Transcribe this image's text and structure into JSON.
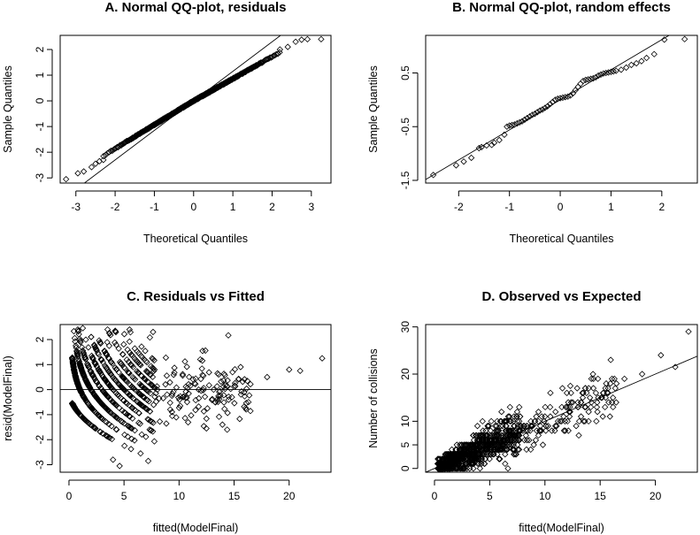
{
  "chart_data": [
    {
      "id": "A",
      "type": "scatter",
      "title": "A. Normal QQ-plot, residuals",
      "xlabel": "Theoretical Quantiles",
      "ylabel": "Sample Quantiles",
      "xlim": [
        -3.4,
        3.5
      ],
      "ylim": [
        -3.2,
        2.55
      ],
      "xticks": [
        -3,
        -2,
        -1,
        0,
        1,
        2,
        3
      ],
      "yticks": [
        -3,
        -2,
        -1,
        0,
        1,
        2
      ],
      "reference_line": {
        "intercept": 0.0,
        "slope": 1.15
      },
      "annotation_points": [
        [
          -3.25,
          -3.05
        ],
        [
          -2.95,
          -2.82
        ],
        [
          -2.8,
          -2.75
        ],
        [
          -2.6,
          -2.58
        ],
        [
          -2.5,
          -2.45
        ],
        [
          -2.4,
          -2.35
        ],
        [
          -2.3,
          -2.3
        ],
        [
          2.2,
          2.0
        ],
        [
          2.4,
          2.1
        ],
        [
          2.6,
          2.3
        ],
        [
          2.75,
          2.38
        ],
        [
          2.9,
          2.4
        ],
        [
          3.25,
          2.4
        ]
      ]
    },
    {
      "id": "B",
      "type": "scatter",
      "title": "B. Normal QQ-plot, random effects",
      "xlabel": "Theoretical Quantiles",
      "ylabel": "Sample Quantiles",
      "xlim": [
        -2.65,
        2.7
      ],
      "ylim": [
        -1.55,
        1.2
      ],
      "xticks": [
        -2,
        -1,
        0,
        1,
        2
      ],
      "yticks": [
        -1.5,
        -0.5,
        0.5
      ],
      "reference_line": {
        "intercept": 0.0,
        "slope": 0.56
      },
      "points": [
        [
          -2.5,
          -1.4
        ],
        [
          -2.05,
          -1.22
        ],
        [
          -1.9,
          -1.15
        ],
        [
          -1.75,
          -1.08
        ],
        [
          -1.6,
          -0.9
        ],
        [
          -1.55,
          -0.88
        ],
        [
          -1.45,
          -0.85
        ],
        [
          -1.35,
          -0.84
        ],
        [
          -1.3,
          -0.8
        ],
        [
          -1.2,
          -0.75
        ],
        [
          -1.1,
          -0.65
        ],
        [
          -1.05,
          -0.5
        ],
        [
          -1.0,
          -0.48
        ],
        [
          -0.95,
          -0.47
        ],
        [
          -0.9,
          -0.46
        ],
        [
          -0.85,
          -0.44
        ],
        [
          -0.8,
          -0.42
        ],
        [
          -0.75,
          -0.4
        ],
        [
          -0.7,
          -0.37
        ],
        [
          -0.65,
          -0.34
        ],
        [
          -0.6,
          -0.31
        ],
        [
          -0.55,
          -0.28
        ],
        [
          -0.5,
          -0.26
        ],
        [
          -0.45,
          -0.23
        ],
        [
          -0.4,
          -0.2
        ],
        [
          -0.35,
          -0.18
        ],
        [
          -0.3,
          -0.15
        ],
        [
          -0.25,
          -0.12
        ],
        [
          -0.2,
          -0.08
        ],
        [
          -0.15,
          -0.04
        ],
        [
          -0.1,
          0.0
        ],
        [
          -0.05,
          0.02
        ],
        [
          0.0,
          0.03
        ],
        [
          0.05,
          0.04
        ],
        [
          0.1,
          0.05
        ],
        [
          0.15,
          0.06
        ],
        [
          0.2,
          0.08
        ],
        [
          0.25,
          0.12
        ],
        [
          0.3,
          0.18
        ],
        [
          0.35,
          0.24
        ],
        [
          0.4,
          0.3
        ],
        [
          0.45,
          0.35
        ],
        [
          0.5,
          0.37
        ],
        [
          0.55,
          0.38
        ],
        [
          0.6,
          0.39
        ],
        [
          0.65,
          0.4
        ],
        [
          0.7,
          0.42
        ],
        [
          0.75,
          0.45
        ],
        [
          0.8,
          0.47
        ],
        [
          0.85,
          0.49
        ],
        [
          0.9,
          0.5
        ],
        [
          0.95,
          0.51
        ],
        [
          1.0,
          0.52
        ],
        [
          1.05,
          0.53
        ],
        [
          1.1,
          0.54
        ],
        [
          1.2,
          0.56
        ],
        [
          1.3,
          0.6
        ],
        [
          1.4,
          0.65
        ],
        [
          1.5,
          0.68
        ],
        [
          1.6,
          0.72
        ],
        [
          1.7,
          0.78
        ],
        [
          1.85,
          0.85
        ],
        [
          2.05,
          1.12
        ],
        [
          2.45,
          1.13
        ]
      ]
    },
    {
      "id": "C",
      "type": "scatter",
      "title": "C. Residuals vs Fitted",
      "xlabel": "fitted(ModelFinal)",
      "ylabel": "resid(ModelFinal)",
      "xlim": [
        -0.8,
        23.8
      ],
      "ylim": [
        -3.3,
        2.6
      ],
      "xticks": [
        0,
        5,
        10,
        15,
        20
      ],
      "yticks": [
        -3,
        -2,
        -1,
        0,
        1,
        2
      ],
      "reference_line": {
        "intercept": 0,
        "slope": 0
      },
      "annotation_points": [
        [
          4.6,
          -3.05
        ],
        [
          7.2,
          -2.85
        ],
        [
          4.0,
          -2.8
        ],
        [
          5.5,
          2.4
        ],
        [
          4.2,
          2.35
        ],
        [
          0.8,
          2.4
        ],
        [
          21,
          0.75
        ],
        [
          23,
          1.25
        ],
        [
          18,
          0.5
        ],
        [
          16.3,
          -0.5
        ],
        [
          20,
          0.8
        ]
      ]
    },
    {
      "id": "D",
      "type": "scatter",
      "title": "D. Observed vs Expected",
      "xlabel": "fitted(ModelFinal)",
      "ylabel": "Number of collisions",
      "xlim": [
        -0.8,
        23.8
      ],
      "ylim": [
        -0.8,
        30.5
      ],
      "xticks": [
        0,
        5,
        10,
        15,
        20
      ],
      "yticks": [
        0,
        5,
        10,
        20,
        30
      ],
      "reference_line": {
        "intercept": 0,
        "slope": 1
      },
      "annotation_points": [
        [
          23,
          29
        ],
        [
          20.5,
          24
        ],
        [
          18.8,
          20
        ],
        [
          17.2,
          19
        ],
        [
          14.8,
          19
        ],
        [
          21.8,
          21.5
        ],
        [
          15.5,
          15
        ],
        [
          12.3,
          17.5
        ]
      ]
    }
  ]
}
